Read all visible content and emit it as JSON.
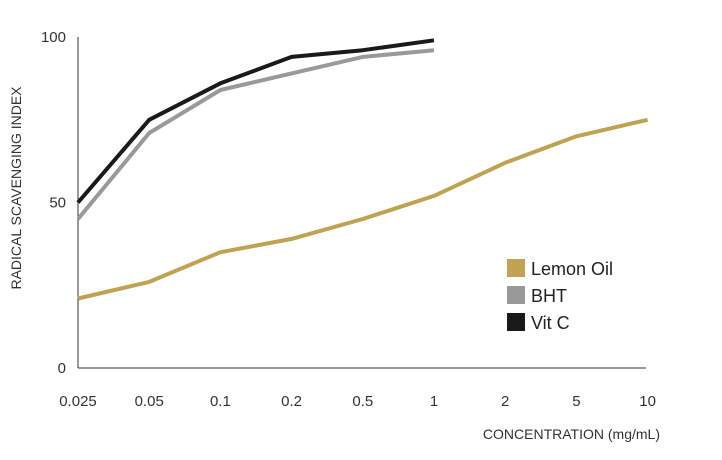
{
  "chart_data": {
    "type": "line",
    "title": "",
    "xlabel": "CONCENTRATION (mg/mL)",
    "ylabel": "RADICAL SCAVENGING INDEX",
    "x_scale": "categorical (log-spaced)",
    "categories": [
      "0.025",
      "0.05",
      "0.1",
      "0.2",
      "0.5",
      "1",
      "2",
      "5",
      "10"
    ],
    "y_ticks": [
      "0",
      "50",
      "100"
    ],
    "ylim": [
      0,
      100
    ],
    "grid": false,
    "legend_position": "center-right",
    "series": [
      {
        "name": "Lemon Oil",
        "color": "#bfa252",
        "values": [
          21,
          26,
          35,
          39,
          45,
          52,
          62,
          70,
          75
        ]
      },
      {
        "name": "BHT",
        "color": "#999999",
        "values": [
          45,
          71,
          84,
          89,
          94,
          96,
          null,
          null,
          null
        ]
      },
      {
        "name": "Vit C",
        "color": "#1a1a1a",
        "values": [
          50,
          75,
          86,
          94,
          96,
          99,
          null,
          null,
          null
        ]
      }
    ]
  }
}
